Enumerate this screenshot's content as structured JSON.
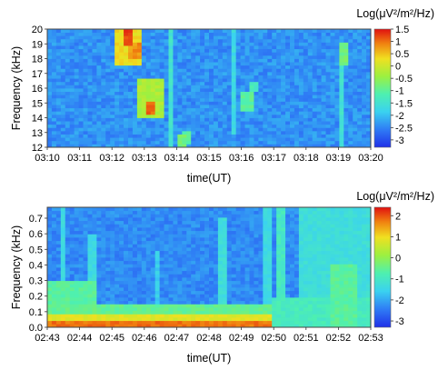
{
  "chart_data": [
    {
      "type": "heatmap",
      "title": "",
      "xlabel": "time(UT)",
      "ylabel": "Frequency (kHz)",
      "colorbar_label": "Log(μV²/m²/Hz)",
      "x_ticks": [
        "03:10",
        "03:11",
        "03:12",
        "03:13",
        "03:14",
        "03:15",
        "03:16",
        "03:17",
        "03:18",
        "03:19",
        "03:20"
      ],
      "y_ticks": [
        "12",
        "13",
        "14",
        "15",
        "16",
        "17",
        "18",
        "19",
        "20"
      ],
      "ylim": [
        12,
        20
      ],
      "colorbar_ticks": [
        "1.5",
        "1",
        "0.5",
        "0",
        "-0.5",
        "-1",
        "-1.5",
        "-2",
        "-2.5",
        "-3"
      ],
      "clim": [
        -3.3,
        1.5
      ],
      "background_level": -2.4,
      "features": [
        {
          "t0": 2.05,
          "t1": 2.85,
          "f0": 17.5,
          "f1": 20.0,
          "level": 0.3
        },
        {
          "t0": 2.35,
          "t1": 2.7,
          "f0": 19.0,
          "f1": 20.0,
          "level": 1.2
        },
        {
          "t0": 2.45,
          "t1": 2.95,
          "f0": 18.0,
          "f1": 19.0,
          "level": 0.8
        },
        {
          "t0": 2.8,
          "t1": 3.55,
          "f0": 14.0,
          "f1": 16.6,
          "level": -0.3
        },
        {
          "t0": 3.05,
          "t1": 3.3,
          "f0": 14.3,
          "f1": 15.0,
          "level": 1.0
        },
        {
          "t0": 3.8,
          "t1": 3.95,
          "f0": 12.0,
          "f1": 20.0,
          "level": -1.5
        },
        {
          "t0": 4.0,
          "t1": 4.25,
          "f0": 12.0,
          "f1": 12.8,
          "level": -0.8
        },
        {
          "t0": 4.2,
          "t1": 4.45,
          "f0": 12.2,
          "f1": 13.2,
          "level": -1.0
        },
        {
          "t0": 5.95,
          "t1": 6.35,
          "f0": 14.5,
          "f1": 15.8,
          "level": -1.0
        },
        {
          "t0": 6.25,
          "t1": 6.55,
          "f0": 15.8,
          "f1": 16.5,
          "level": -1.3
        },
        {
          "t0": 5.7,
          "t1": 5.9,
          "f0": 12.8,
          "f1": 20.0,
          "level": -1.7
        },
        {
          "t0": 9.0,
          "t1": 9.2,
          "f0": 12.0,
          "f1": 18.8,
          "level": -1.5
        },
        {
          "t0": 9.05,
          "t1": 9.3,
          "f0": 17.5,
          "f1": 19.0,
          "level": -0.8
        }
      ]
    },
    {
      "type": "heatmap",
      "title": "",
      "xlabel": "time(UT)",
      "ylabel": "Frequency (kHz)",
      "colorbar_label": "Log(μV²/m²/Hz)",
      "x_ticks": [
        "02:43",
        "02:44",
        "02:45",
        "02:46",
        "02:47",
        "02:48",
        "02:49",
        "02:50",
        "02:51",
        "02:52",
        "02:53"
      ],
      "y_ticks": [
        "0.0",
        "0.1",
        "0.2",
        "0.3",
        "0.4",
        "0.5",
        "0.6",
        "0.7"
      ],
      "ylim": [
        0.0,
        0.77
      ],
      "colorbar_ticks": [
        "2",
        "1",
        "0",
        "-1",
        "-2",
        "-3"
      ],
      "clim": [
        -3.3,
        2.4
      ],
      "background_level": -2.3,
      "features": [
        {
          "t0": 0.0,
          "t1": 7.0,
          "f0": 0.0,
          "f1": 0.04,
          "level": 1.8
        },
        {
          "t0": 0.0,
          "t1": 7.0,
          "f0": 0.04,
          "f1": 0.09,
          "level": 0.8
        },
        {
          "t0": 0.0,
          "t1": 7.0,
          "f0": 0.09,
          "f1": 0.15,
          "level": -0.5
        },
        {
          "t0": 0.0,
          "t1": 1.5,
          "f0": 0.15,
          "f1": 0.3,
          "level": -0.6
        },
        {
          "t0": 7.0,
          "t1": 10.0,
          "f0": 0.0,
          "f1": 0.2,
          "level": -0.9
        },
        {
          "t0": 7.8,
          "t1": 10.0,
          "f0": 0.2,
          "f1": 0.77,
          "level": -1.3
        },
        {
          "t0": 8.8,
          "t1": 9.6,
          "f0": 0.0,
          "f1": 0.4,
          "level": -0.6
        },
        {
          "t0": 0.4,
          "t1": 0.6,
          "f0": 0.0,
          "f1": 0.77,
          "level": -1.4
        },
        {
          "t0": 1.3,
          "t1": 1.5,
          "f0": 0.0,
          "f1": 0.6,
          "level": -1.4
        },
        {
          "t0": 3.3,
          "t1": 3.5,
          "f0": 0.0,
          "f1": 0.5,
          "level": -1.6
        },
        {
          "t0": 5.3,
          "t1": 5.5,
          "f0": 0.0,
          "f1": 0.7,
          "level": -1.3
        },
        {
          "t0": 6.7,
          "t1": 6.9,
          "f0": 0.0,
          "f1": 0.77,
          "level": -1.4
        },
        {
          "t0": 7.1,
          "t1": 7.3,
          "f0": 0.0,
          "f1": 0.77,
          "level": -1.0
        }
      ]
    }
  ]
}
